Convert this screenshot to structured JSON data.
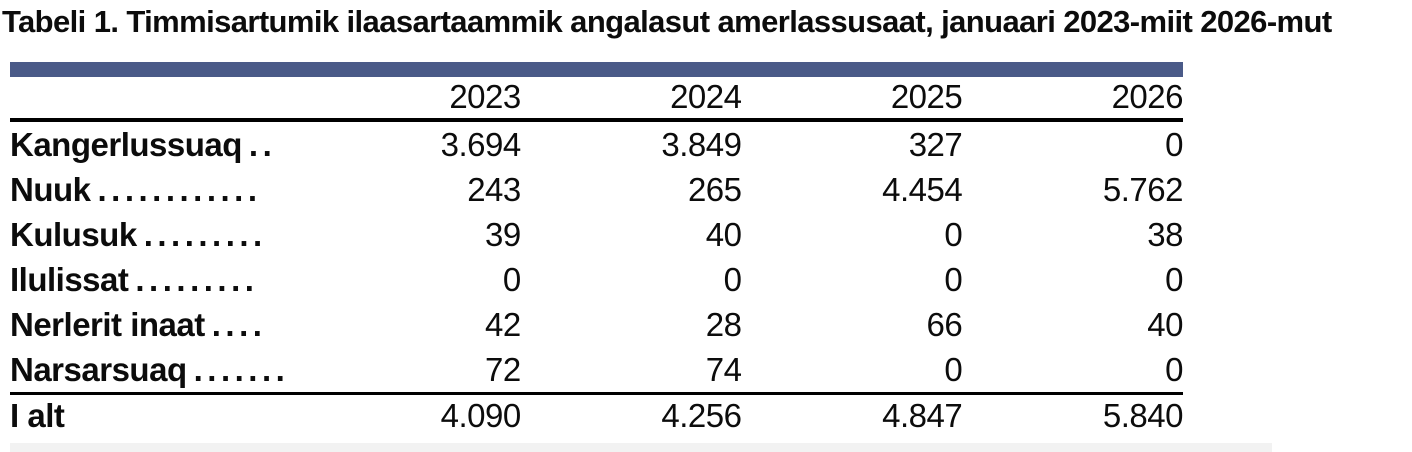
{
  "title": "Tabeli 1. Timmisartumik ilaasartaammik angalasut amerlassusaat, januaari 2023-miit 2026-mut",
  "colors": {
    "accent_bar": "#4a5a88",
    "rule": "#000000",
    "bottom_bar": "#f2f2f2",
    "text": "#0c0c0c",
    "background": "#ffffff"
  },
  "table": {
    "columns": [
      "2023",
      "2024",
      "2025",
      "2026"
    ],
    "rows": [
      {
        "label": "Kangerlussuaq",
        "dots": "..",
        "values": [
          "3.694",
          "3.849",
          "327",
          "0"
        ]
      },
      {
        "label": "Nuuk",
        "dots": "............",
        "values": [
          "243",
          "265",
          "4.454",
          "5.762"
        ]
      },
      {
        "label": "Kulusuk",
        "dots": ".........",
        "values": [
          "39",
          "40",
          "0",
          "38"
        ]
      },
      {
        "label": "Ilulissat",
        "dots": ".........",
        "values": [
          "0",
          "0",
          "0",
          "0"
        ]
      },
      {
        "label": "Nerlerit inaat",
        "dots": "....",
        "values": [
          "42",
          "28",
          "66",
          "40"
        ]
      },
      {
        "label": "Narsarsuaq",
        "dots": ".......",
        "values": [
          "72",
          "74",
          "0",
          "0"
        ]
      },
      {
        "label": "I alt",
        "dots": "",
        "values": [
          "4.090",
          "4.256",
          "4.847",
          "5.840"
        ],
        "is_total": true
      }
    ]
  },
  "chart_data": {
    "type": "table",
    "title": "Tabeli 1. Timmisartumik ilaasartaammik angalasut amerlassusaat, januaari 2023-miit 2026-mut",
    "categories": [
      "2023",
      "2024",
      "2025",
      "2026"
    ],
    "series": [
      {
        "name": "Kangerlussuaq",
        "values": [
          3694,
          3849,
          327,
          0
        ]
      },
      {
        "name": "Nuuk",
        "values": [
          243,
          265,
          4454,
          5762
        ]
      },
      {
        "name": "Kulusuk",
        "values": [
          39,
          40,
          0,
          38
        ]
      },
      {
        "name": "Ilulissat",
        "values": [
          0,
          0,
          0,
          0
        ]
      },
      {
        "name": "Nerlerit inaat",
        "values": [
          42,
          28,
          66,
          40
        ]
      },
      {
        "name": "Narsarsuaq",
        "values": [
          72,
          74,
          0,
          0
        ]
      }
    ],
    "total_row": {
      "name": "I alt",
      "values": [
        4090,
        4256,
        4847,
        5840
      ]
    }
  }
}
